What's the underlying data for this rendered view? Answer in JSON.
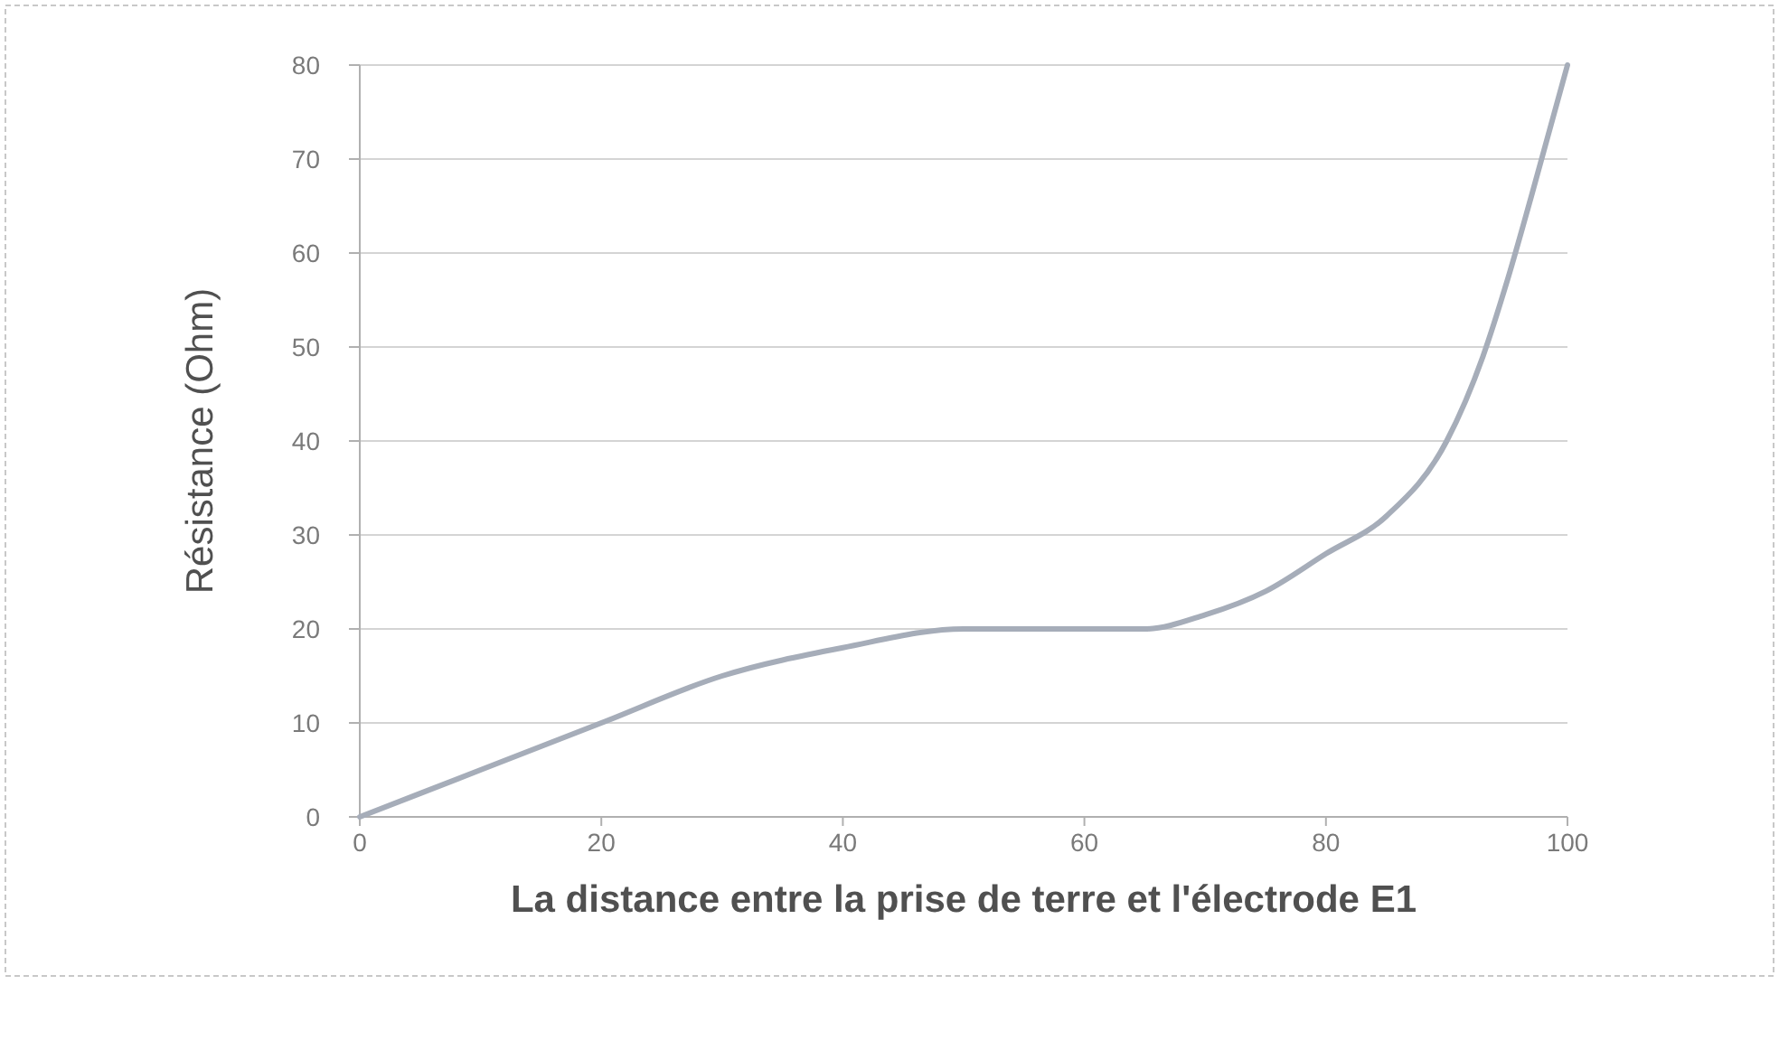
{
  "chart_data": {
    "type": "line",
    "xlabel": "La distance entre la prise de terre et l'électrode E1",
    "ylabel": "Résistance (Ohm)",
    "x": [
      0,
      10,
      20,
      30,
      40,
      50,
      60,
      65,
      70,
      75,
      80,
      85,
      90,
      93,
      95,
      97,
      100
    ],
    "series": [
      {
        "color": "#a6adb9",
        "values": [
          0,
          5,
          10,
          15,
          18,
          20,
          20,
          20,
          21.5,
          24,
          28,
          32,
          40,
          49,
          57,
          66,
          80
        ]
      }
    ],
    "xlim": [
      0,
      100
    ],
    "xticks": [
      0,
      20,
      40,
      60,
      80,
      100
    ],
    "ylim": [
      0,
      80
    ],
    "yticks": [
      0,
      10,
      20,
      30,
      40,
      50,
      60,
      70,
      80
    ],
    "grid": "y",
    "line_style": "solid"
  }
}
